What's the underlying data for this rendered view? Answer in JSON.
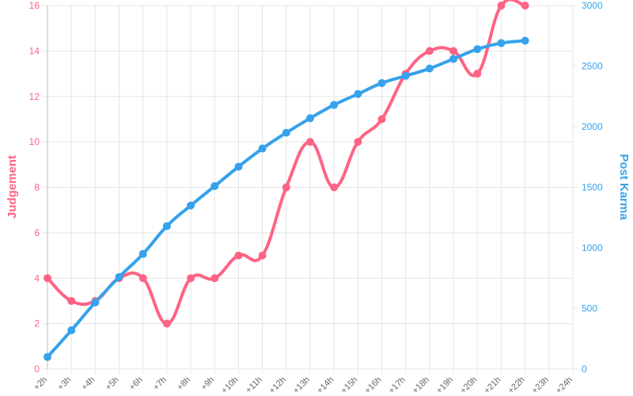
{
  "chart_data": {
    "type": "line",
    "categories": [
      "+2h",
      "+3h",
      "+4h",
      "+5h",
      "+6h",
      "+7h",
      "+8h",
      "+9h",
      "+10h",
      "+11h",
      "+12h",
      "+13h",
      "+14h",
      "+15h",
      "+16h",
      "+17h",
      "+18h",
      "+19h",
      "+20h",
      "+21h",
      "+22h",
      "+23h",
      "+24h"
    ],
    "y_label": "Judgement",
    "y2_label": "Post Karma",
    "ylim": [
      0,
      16
    ],
    "yticks": [
      0,
      2,
      4,
      6,
      8,
      10,
      12,
      14,
      16
    ],
    "y2lim": [
      0,
      3000
    ],
    "y2ticks": [
      0,
      500,
      1000,
      1500,
      2000,
      2500,
      3000
    ],
    "grid": true,
    "series": [
      {
        "name": "Judgement",
        "color": "#ff6384",
        "axis": "y",
        "values": [
          4,
          3,
          3,
          4,
          4,
          2,
          4,
          4,
          5,
          5,
          8,
          10,
          8,
          10,
          11,
          13,
          14,
          14,
          13,
          16,
          16,
          null,
          null
        ]
      },
      {
        "name": "Post Karma",
        "color": "#36a2eb",
        "axis": "y2",
        "values": [
          100,
          320,
          550,
          760,
          950,
          1180,
          1350,
          1510,
          1670,
          1820,
          1950,
          2070,
          2180,
          2270,
          2360,
          2420,
          2480,
          2560,
          2640,
          2690,
          2710,
          null,
          null
        ]
      }
    ]
  }
}
